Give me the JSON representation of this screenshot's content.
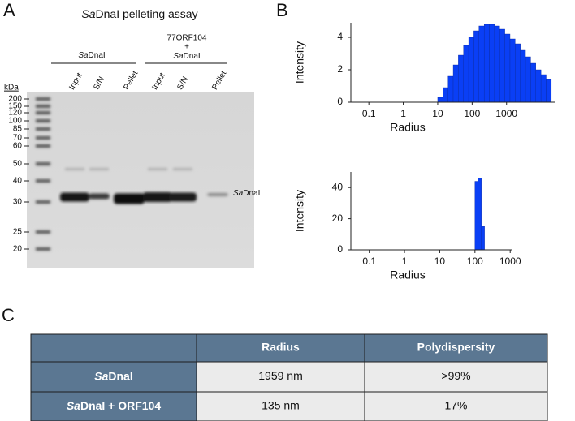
{
  "panel_labels": [
    "A",
    "B",
    "C"
  ],
  "gel": {
    "title_runs": [
      "Sa",
      "DnaI pelleting assay"
    ],
    "unit": "kDa",
    "markers": [
      "200",
      "150",
      "120",
      "100",
      "85",
      "70",
      "60",
      "50",
      "40",
      "30",
      "25",
      "20"
    ],
    "groups": [
      {
        "runs": [
          "Sa",
          "DnaI"
        ]
      },
      {
        "lines": [
          "77ORF104",
          "+"
        ],
        "runs": [
          "Sa",
          "DnaI"
        ]
      }
    ],
    "lanes": [
      "Input",
      "S/N",
      "Pellet",
      "Input",
      "S/N",
      "Pellet"
    ],
    "band_label_runs": [
      "Sa",
      "DnaI"
    ]
  },
  "chart_data": [
    {
      "type": "histogram",
      "xlabel": "Radius",
      "ylabel": "Intensity",
      "xscale": "log",
      "bins": [
        10,
        14.1,
        20,
        28.2,
        39.8,
        56.2,
        79.4,
        112,
        158,
        224,
        316,
        447,
        631,
        891,
        1259,
        1778,
        2512,
        3548,
        5012,
        7079,
        10000,
        14125,
        19953
      ],
      "counts": [
        0.3,
        0.9,
        1.6,
        2.3,
        2.9,
        3.5,
        4.0,
        4.4,
        4.7,
        4.8,
        4.8,
        4.7,
        4.5,
        4.2,
        3.9,
        3.6,
        3.2,
        2.8,
        2.4,
        2.0,
        1.7,
        1.4
      ],
      "color": "#0a3ff5",
      "xlim": [
        0.03,
        25000
      ],
      "ylim": [
        0,
        4.9
      ],
      "xticks": [
        0.1,
        1,
        10,
        100,
        1000
      ],
      "yticks": [
        0,
        2,
        4
      ]
    },
    {
      "type": "histogram",
      "xlabel": "Radius",
      "ylabel": "Intensity",
      "xscale": "log",
      "bins": [
        100,
        123,
        152,
        187
      ],
      "counts": [
        44,
        46,
        15
      ],
      "color": "#0a3ff5",
      "xlim": [
        0.03,
        1100
      ],
      "ylim": [
        0,
        50
      ],
      "xticks": [
        0.1,
        1,
        10,
        100,
        1000
      ],
      "yticks": [
        0,
        20,
        40
      ]
    }
  ],
  "table": {
    "columns": [
      "Radius",
      "Polydispersity"
    ],
    "rows": [
      {
        "label_runs": [
          "Sa",
          "DnaI"
        ],
        "cells": [
          "1959 nm",
          ">99%"
        ]
      },
      {
        "label_runs": [
          "Sa",
          "DnaI + ORF104"
        ],
        "cells": [
          "135 nm",
          "17%"
        ]
      }
    ]
  }
}
